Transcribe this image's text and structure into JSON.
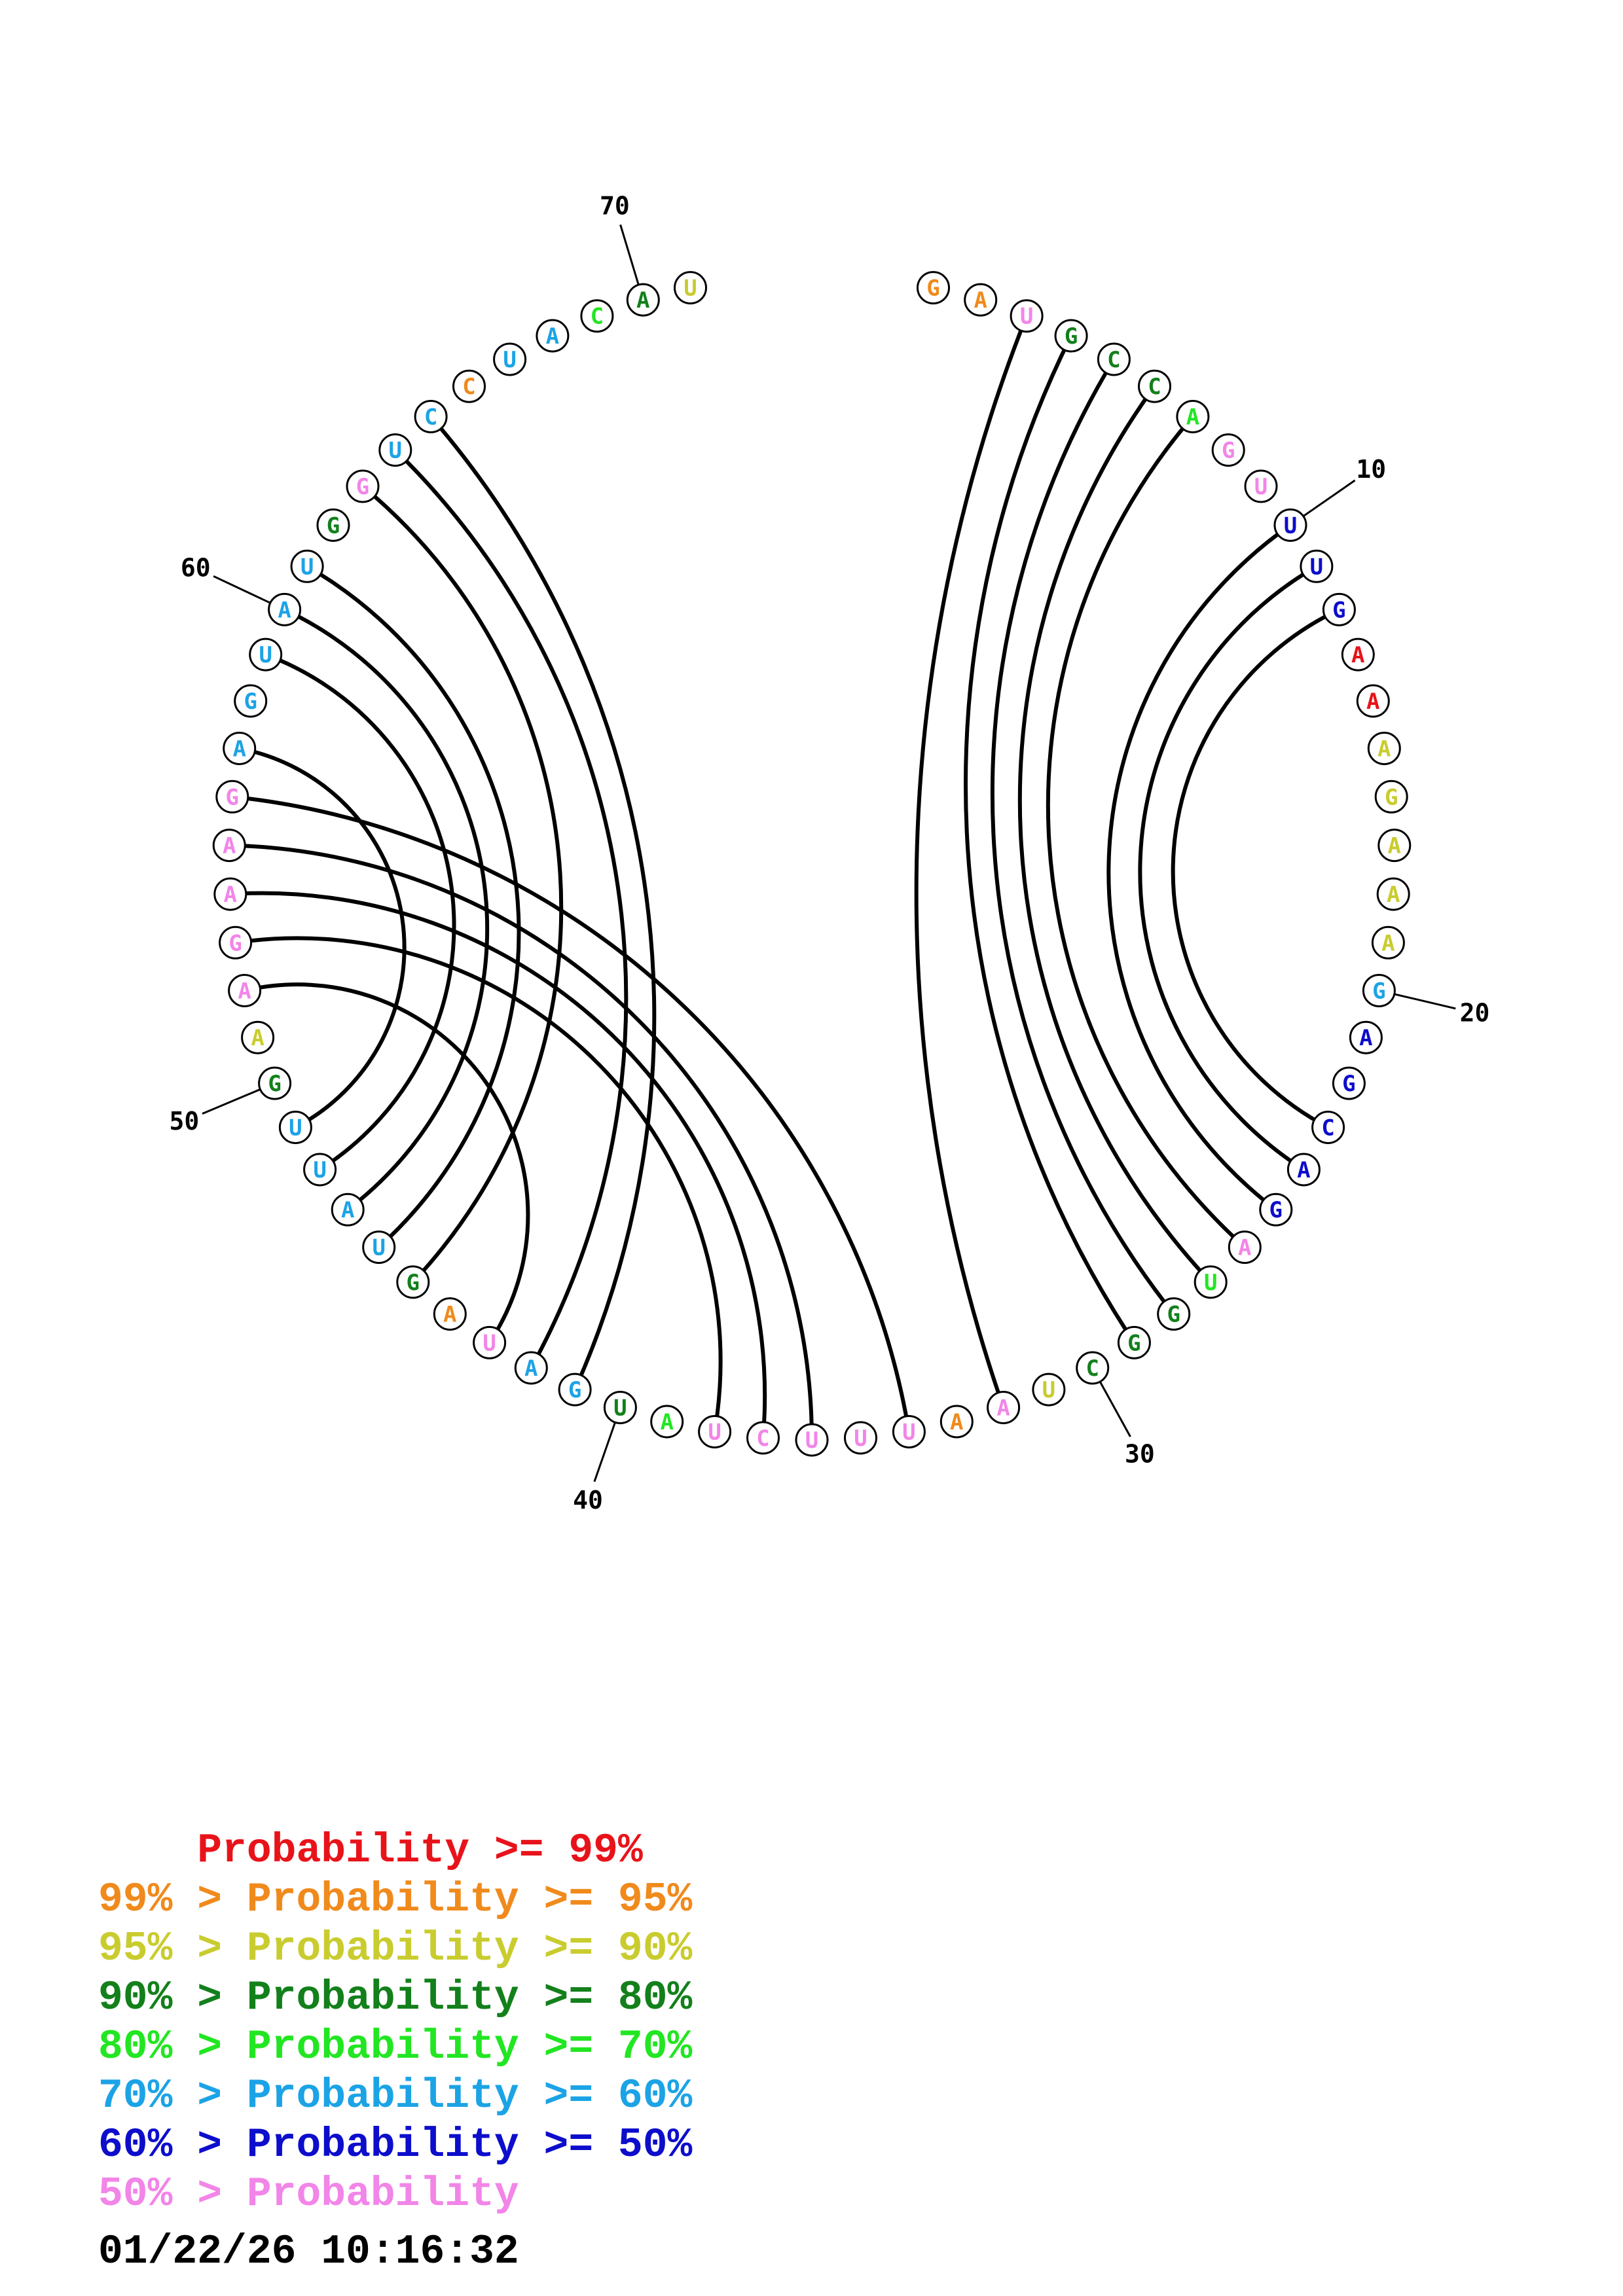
{
  "colors": {
    "p99": "#e8131a",
    "p95": "#f08a1c",
    "p90": "#c9cc2e",
    "p80": "#13801b",
    "p70": "#22e622",
    "p60": "#1ca3e6",
    "p50": "#0d0dcc",
    "plow": "#f285e8"
  },
  "sequence": [
    {
      "n": 1,
      "base": "G",
      "c": "p95"
    },
    {
      "n": 2,
      "base": "A",
      "c": "p95"
    },
    {
      "n": 3,
      "base": "U",
      "c": "plow"
    },
    {
      "n": 4,
      "base": "G",
      "c": "p80"
    },
    {
      "n": 5,
      "base": "C",
      "c": "p80"
    },
    {
      "n": 6,
      "base": "C",
      "c": "p80"
    },
    {
      "n": 7,
      "base": "A",
      "c": "p70"
    },
    {
      "n": 8,
      "base": "G",
      "c": "plow"
    },
    {
      "n": 9,
      "base": "U",
      "c": "plow"
    },
    {
      "n": 10,
      "base": "U",
      "c": "p50"
    },
    {
      "n": 11,
      "base": "U",
      "c": "p50"
    },
    {
      "n": 12,
      "base": "G",
      "c": "p50"
    },
    {
      "n": 13,
      "base": "A",
      "c": "p99"
    },
    {
      "n": 14,
      "base": "A",
      "c": "p99"
    },
    {
      "n": 15,
      "base": "A",
      "c": "p90"
    },
    {
      "n": 16,
      "base": "G",
      "c": "p90"
    },
    {
      "n": 17,
      "base": "A",
      "c": "p90"
    },
    {
      "n": 18,
      "base": "A",
      "c": "p90"
    },
    {
      "n": 19,
      "base": "A",
      "c": "p90"
    },
    {
      "n": 20,
      "base": "G",
      "c": "p60"
    },
    {
      "n": 21,
      "base": "A",
      "c": "p50"
    },
    {
      "n": 22,
      "base": "G",
      "c": "p50"
    },
    {
      "n": 23,
      "base": "C",
      "c": "p50"
    },
    {
      "n": 24,
      "base": "A",
      "c": "p50"
    },
    {
      "n": 25,
      "base": "G",
      "c": "p50"
    },
    {
      "n": 26,
      "base": "A",
      "c": "plow"
    },
    {
      "n": 27,
      "base": "U",
      "c": "p70"
    },
    {
      "n": 28,
      "base": "G",
      "c": "p80"
    },
    {
      "n": 29,
      "base": "G",
      "c": "p80"
    },
    {
      "n": 30,
      "base": "C",
      "c": "p80"
    },
    {
      "n": 31,
      "base": "U",
      "c": "p90"
    },
    {
      "n": 32,
      "base": "A",
      "c": "plow"
    },
    {
      "n": 33,
      "base": "A",
      "c": "p95"
    },
    {
      "n": 34,
      "base": "U",
      "c": "plow"
    },
    {
      "n": 35,
      "base": "U",
      "c": "plow"
    },
    {
      "n": 36,
      "base": "U",
      "c": "plow"
    },
    {
      "n": 37,
      "base": "C",
      "c": "plow"
    },
    {
      "n": 38,
      "base": "U",
      "c": "plow"
    },
    {
      "n": 39,
      "base": "A",
      "c": "p70"
    },
    {
      "n": 40,
      "base": "U",
      "c": "p80"
    },
    {
      "n": 41,
      "base": "G",
      "c": "p60"
    },
    {
      "n": 42,
      "base": "A",
      "c": "p60"
    },
    {
      "n": 43,
      "base": "U",
      "c": "plow"
    },
    {
      "n": 44,
      "base": "A",
      "c": "p95"
    },
    {
      "n": 45,
      "base": "G",
      "c": "p80"
    },
    {
      "n": 46,
      "base": "U",
      "c": "p60"
    },
    {
      "n": 47,
      "base": "A",
      "c": "p60"
    },
    {
      "n": 48,
      "base": "U",
      "c": "p60"
    },
    {
      "n": 49,
      "base": "U",
      "c": "p60"
    },
    {
      "n": 50,
      "base": "G",
      "c": "p80"
    },
    {
      "n": 51,
      "base": "A",
      "c": "p90"
    },
    {
      "n": 52,
      "base": "A",
      "c": "plow"
    },
    {
      "n": 53,
      "base": "G",
      "c": "plow"
    },
    {
      "n": 54,
      "base": "A",
      "c": "plow"
    },
    {
      "n": 55,
      "base": "A",
      "c": "plow"
    },
    {
      "n": 56,
      "base": "G",
      "c": "plow"
    },
    {
      "n": 57,
      "base": "A",
      "c": "p60"
    },
    {
      "n": 58,
      "base": "G",
      "c": "p60"
    },
    {
      "n": 59,
      "base": "U",
      "c": "p60"
    },
    {
      "n": 60,
      "base": "A",
      "c": "p60"
    },
    {
      "n": 61,
      "base": "U",
      "c": "p60"
    },
    {
      "n": 62,
      "base": "G",
      "c": "p80"
    },
    {
      "n": 63,
      "base": "G",
      "c": "plow"
    },
    {
      "n": 64,
      "base": "U",
      "c": "p60"
    },
    {
      "n": 65,
      "base": "C",
      "c": "p60"
    },
    {
      "n": 66,
      "base": "C",
      "c": "p95"
    },
    {
      "n": 67,
      "base": "U",
      "c": "p60"
    },
    {
      "n": 68,
      "base": "A",
      "c": "p60"
    },
    {
      "n": 69,
      "base": "C",
      "c": "p70"
    },
    {
      "n": 70,
      "base": "A",
      "c": "p80"
    },
    {
      "n": 71,
      "base": "U",
      "c": "p90"
    }
  ],
  "pairs": [
    [
      3,
      32
    ],
    [
      4,
      29
    ],
    [
      5,
      28
    ],
    [
      6,
      27
    ],
    [
      7,
      26
    ],
    [
      10,
      25
    ],
    [
      11,
      24
    ],
    [
      12,
      23
    ],
    [
      34,
      56
    ],
    [
      36,
      55
    ],
    [
      37,
      54
    ],
    [
      38,
      53
    ],
    [
      43,
      52
    ],
    [
      41,
      65
    ],
    [
      42,
      64
    ],
    [
      45,
      63
    ],
    [
      46,
      61
    ],
    [
      47,
      60
    ],
    [
      48,
      59
    ],
    [
      49,
      57
    ]
  ],
  "ticks": [
    {
      "n": 10,
      "label": "10"
    },
    {
      "n": 20,
      "label": "20"
    },
    {
      "n": 30,
      "label": "30"
    },
    {
      "n": 40,
      "label": "40"
    },
    {
      "n": 50,
      "label": "50"
    },
    {
      "n": 60,
      "label": "60"
    },
    {
      "n": 70,
      "label": "70"
    }
  ],
  "legend": [
    {
      "prefix": "    ",
      "prefix_color": "p99",
      "text": "Probability >= 99%",
      "color": "p99"
    },
    {
      "prefix": "99% > ",
      "prefix_color": "p95",
      "text": "Probability >= 95%",
      "color": "p95"
    },
    {
      "prefix": "95% > ",
      "prefix_color": "p90",
      "text": "Probability >= 90%",
      "color": "p90"
    },
    {
      "prefix": "90% > ",
      "prefix_color": "p80",
      "text": "Probability >= 80%",
      "color": "p80"
    },
    {
      "prefix": "80% > ",
      "prefix_color": "p70",
      "text": "Probability >= 70%",
      "color": "p70"
    },
    {
      "prefix": "70% > ",
      "prefix_color": "p60",
      "text": "Probability >= 60%",
      "color": "p60"
    },
    {
      "prefix": "60% > ",
      "prefix_color": "p50",
      "text": "Probability >= 50%",
      "color": "p50"
    },
    {
      "prefix": "50% > ",
      "prefix_color": "plow",
      "text": "Probability",
      "color": "plow"
    }
  ],
  "timestamp": "01/22/26 10:16:32"
}
